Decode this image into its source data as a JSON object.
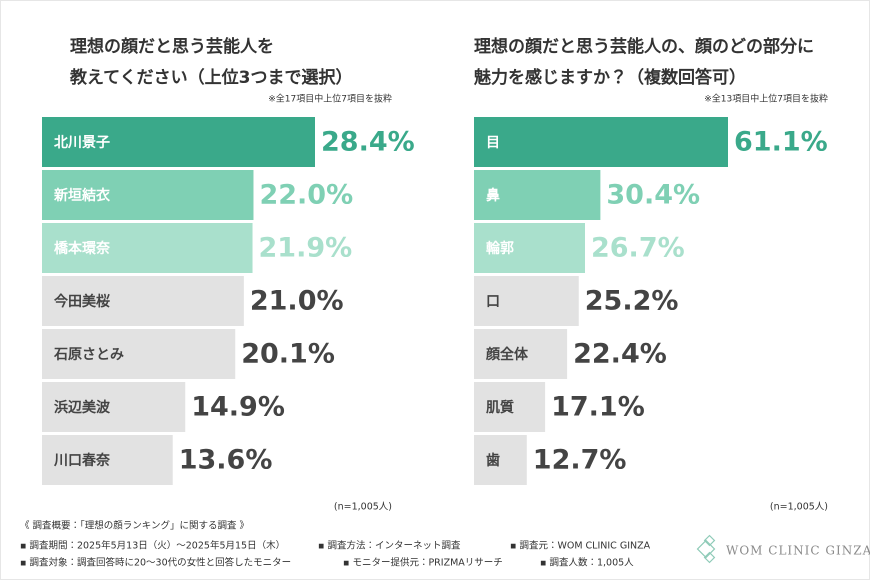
{
  "chart_data": [
    {
      "type": "bar",
      "orientation": "horizontal",
      "title": [
        "理想の顔だと思う芸能人を",
        "教えてください（上位3つまで選択）"
      ],
      "note": "※全17項目中上位7項目を抜粋",
      "sample": "(n=1,005人)",
      "categories": [
        "北川景子",
        "新垣結衣",
        "橋本環奈",
        "今田美桜",
        "石原さとみ",
        "浜辺美波",
        "川口春奈"
      ],
      "values": [
        28.4,
        22.0,
        21.9,
        21.0,
        20.1,
        14.9,
        13.6
      ],
      "value_labels": [
        "28.4%",
        "22.0%",
        "21.9%",
        "21.0%",
        "20.1%",
        "14.9%",
        "13.6%"
      ],
      "colors": [
        "#3aa98a",
        "#7fd0b4",
        "#a9e0cc",
        "#e2e2e2",
        "#e2e2e2",
        "#e2e2e2",
        "#e2e2e2"
      ],
      "label_colors": [
        "#3aa98a",
        "#7fd0b4",
        "#a9e0cc",
        "#444444",
        "#444444",
        "#444444",
        "#444444"
      ],
      "text_colors": [
        "#ffffff",
        "#ffffff",
        "#ffffff",
        "#444444",
        "#444444",
        "#444444",
        "#444444"
      ]
    },
    {
      "type": "bar",
      "orientation": "horizontal",
      "title": [
        "理想の顔だと思う芸能人の、顔のどの部分に",
        "魅力を感じますか？（複数回答可）"
      ],
      "note": "※全13項目中上位7項目を抜粋",
      "sample": "(n=1,005人)",
      "categories": [
        "目",
        "鼻",
        "輪郭",
        "口",
        "顔全体",
        "肌質",
        "歯"
      ],
      "values": [
        61.1,
        30.4,
        26.7,
        25.2,
        22.4,
        17.1,
        12.7
      ],
      "value_labels": [
        "61.1%",
        "30.4%",
        "26.7%",
        "25.2%",
        "22.4%",
        "17.1%",
        "12.7%"
      ],
      "colors": [
        "#3aa98a",
        "#7fd0b4",
        "#a9e0cc",
        "#e2e2e2",
        "#e2e2e2",
        "#e2e2e2",
        "#e2e2e2"
      ],
      "label_colors": [
        "#3aa98a",
        "#7fd0b4",
        "#a9e0cc",
        "#444444",
        "#444444",
        "#444444",
        "#444444"
      ],
      "text_colors": [
        "#ffffff",
        "#ffffff",
        "#ffffff",
        "#444444",
        "#444444",
        "#444444",
        "#444444"
      ]
    }
  ],
  "footer": {
    "heading": "《 調査概要：「理想の顔ランキング」に関する調査 》",
    "items": [
      "▪ 調査期間：2025年5月13日（火）〜2025年5月15日（木）",
      "▪ 調査方法：インターネット調査",
      "▪ 調査元：WOM CLINIC GINZA",
      "▪ 調査対象：調査回答時に20〜30代の女性と回答したモニター",
      "▪ モニター提供元：PRIZMAリサーチ",
      "▪ 調査人数：1,005人"
    ],
    "brand": "WOM CLINIC GINZA"
  }
}
